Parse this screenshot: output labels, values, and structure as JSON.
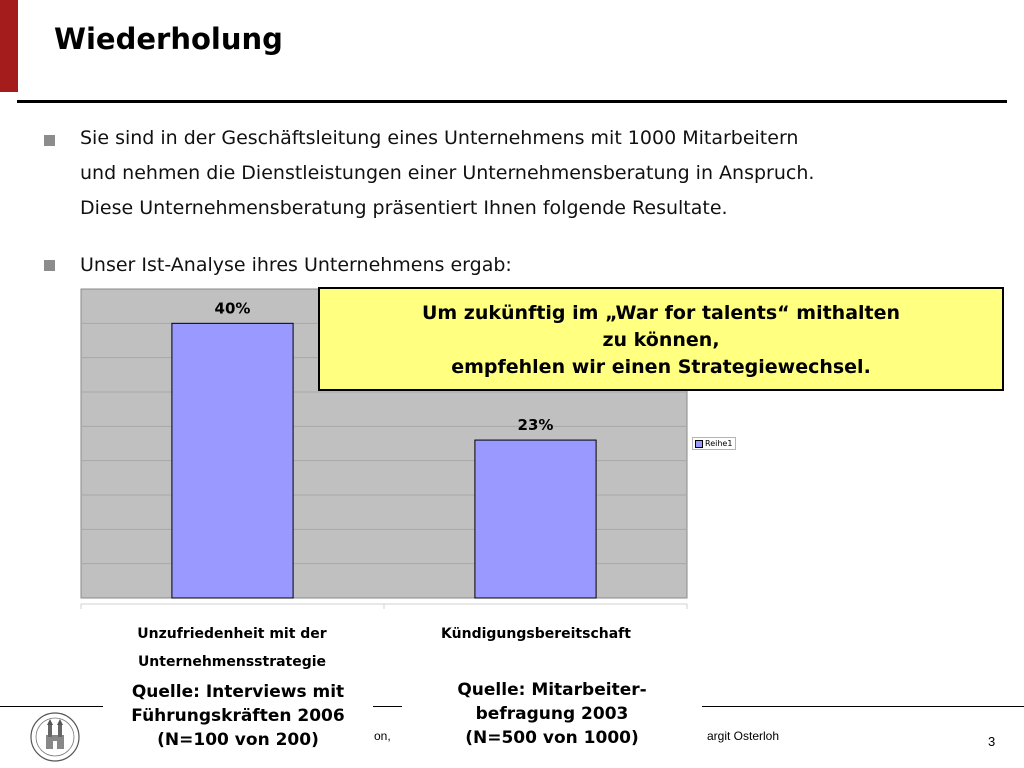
{
  "header": {
    "title": "Wiederholung"
  },
  "bullets": [
    {
      "lines": [
        "Sie sind in der Geschäftsleitung eines Unternehmens mit 1000 Mitarbeitern",
        "und nehmen die Dienstleistungen einer Unternehmensberatung in Anspruch.",
        "Diese Unternehmensberatung präsentiert Ihnen folgende Resultate."
      ]
    },
    {
      "lines": [
        "Unser  Ist-Analyse ihres Unternehmens ergab:"
      ]
    }
  ],
  "callout": {
    "lines": [
      "Um zukünftig im „War for talents“ mithalten",
      "zu können,",
      "empfehlen wir einen Strategiewechsel."
    ]
  },
  "chart_data": {
    "type": "bar",
    "categories": [
      "Unzufriedenheit mit der Unternehmensstrategie",
      "Kündigungsbereitschaft"
    ],
    "category_label_lines": [
      [
        "Unzufriedenheit mit der",
        "Unternehmensstrategie"
      ],
      [
        "Kündigungsbereitschaft"
      ]
    ],
    "series": [
      {
        "name": "Reihe1",
        "values": [
          40,
          23
        ]
      }
    ],
    "data_labels": [
      "40%",
      "23%"
    ],
    "ylim": [
      0,
      45
    ],
    "grid": true,
    "legend": "right",
    "colors": {
      "bar": "#9999ff",
      "plot_bg": "#c0c0c0",
      "grid": "#a8a8a8"
    }
  },
  "sources": [
    {
      "lines": [
        "Quelle: Interviews mit",
        "Führungskräften 2006",
        "(N=100 von 200)"
      ]
    },
    {
      "lines": [
        "Quelle: Mitarbeiter-",
        "befragung 2003",
        "(N=500 von 1000)"
      ]
    }
  ],
  "footer": {
    "fragment_left": "on,",
    "fragment_right": "argit Osterloh",
    "page_number": "3"
  },
  "colors": {
    "accent": "#a51c1c",
    "callout_bg": "#ffff80",
    "bullet": "#8c8c8c"
  }
}
